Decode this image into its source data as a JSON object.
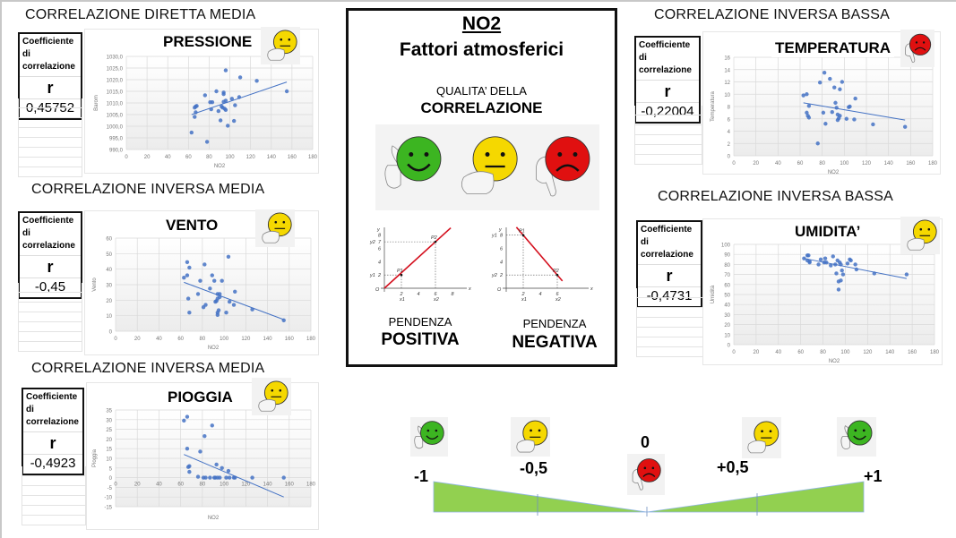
{
  "center": {
    "title": "NO2",
    "subtitle": "Fattori atmosferici",
    "quality_line1": "QUALITA’ DELLA",
    "quality_line2": "CORRELAZIONE",
    "faces": [
      "green-happy-thumbs-up",
      "yellow-neutral-thumb-sideways",
      "red-sad-thumbs-down"
    ],
    "slope_positive": {
      "label1": "PENDENZA",
      "label2": "POSITIVA",
      "points": [
        "P1",
        "P2"
      ],
      "ticks_x": [
        "2",
        "4",
        "6",
        "8"
      ],
      "ticks_y": [
        "2",
        "4",
        "6",
        "7",
        "8"
      ],
      "axis_x": "x",
      "axis_y": "y",
      "origin": "O",
      "x1": "x1",
      "x2": "x2",
      "y1": "y1",
      "y2": "y2"
    },
    "slope_negative": {
      "label1": "PENDENZA",
      "label2": "NEGATIVA",
      "points": [
        "P1",
        "P2"
      ],
      "ticks_x": [
        "2",
        "4",
        "6"
      ],
      "ticks_y": [
        "2",
        "4",
        "6",
        "8"
      ],
      "axis_x": "x",
      "axis_y": "y",
      "origin": "O",
      "x1": "x1",
      "x2": "x2",
      "y1": "y1",
      "y2": "y2"
    }
  },
  "coef_header": "Coefficiente di correlazione",
  "coef_symbol": "r",
  "scale": {
    "labels": [
      "-1",
      "-0,5",
      "0",
      "+0,5",
      "+1"
    ],
    "faces": [
      "green",
      "yellow",
      "red",
      "yellow",
      "green"
    ],
    "fill_color": "#92d050"
  },
  "panels": [
    {
      "section": "CORRELAZIONE DIRETTA MEDIA",
      "name": "PRESSIONE",
      "r": "0,45752",
      "face": "yellow"
    },
    {
      "section": "CORRELAZIONE INVERSA MEDIA",
      "name": "VENTO",
      "r": "-0,45",
      "face": "yellow"
    },
    {
      "section": "CORRELAZIONE INVERSA MEDIA",
      "name": "PIOGGIA",
      "r": "-0,4923",
      "face": "yellow"
    },
    {
      "section": "CORRELAZIONE INVERSA BASSA",
      "name": "TEMPERATURA",
      "r": "-0,22004",
      "face": "red"
    },
    {
      "section": "CORRELAZIONE INVERSA BASSA",
      "name": "UMIDITA’",
      "r": "-0,4731",
      "face": "yellow"
    }
  ],
  "colors": {
    "point": "#4472c4",
    "green": "#3cb521",
    "yellow": "#f5d800",
    "red": "#e01010",
    "slope_line": "#d4101e"
  },
  "chart_data": [
    {
      "type": "scatter",
      "title": "PRESSIONE",
      "xlabel": "NO2",
      "ylabel": "Barom",
      "xlim": [
        0,
        180
      ],
      "ylim": [
        990,
        1030
      ],
      "xticks": [
        "0",
        "20",
        "40",
        "60",
        "80",
        "100",
        "120",
        "140",
        "160",
        "180"
      ],
      "yticks": [
        "990,0",
        "995,0",
        "1000,0",
        "1005,0",
        "1010,0",
        "1015,0",
        "1020,0",
        "1025,0",
        "1030,0"
      ],
      "grid": true,
      "trendline": [
        [
          63,
          1005.0
        ],
        [
          155,
          1019.0
        ]
      ],
      "points": [
        [
          63,
          997.3
        ],
        [
          66,
          1004.0
        ],
        [
          66,
          1008.0
        ],
        [
          67,
          1006.0
        ],
        [
          67,
          1008.5
        ],
        [
          68,
          1008.7
        ],
        [
          76,
          1013.3
        ],
        [
          78,
          993.3
        ],
        [
          81,
          1010.3
        ],
        [
          82,
          1007.3
        ],
        [
          83,
          1010.3
        ],
        [
          87,
          1015.0
        ],
        [
          89,
          1006.5
        ],
        [
          91,
          1002.5
        ],
        [
          92,
          1008.5
        ],
        [
          93,
          1008.0
        ],
        [
          94,
          1014.5
        ],
        [
          94,
          1013.8
        ],
        [
          94,
          1010.5
        ],
        [
          95,
          1007.5
        ],
        [
          96,
          1011.0
        ],
        [
          96,
          1024.0
        ],
        [
          96,
          1007.0
        ],
        [
          98,
          1000.2
        ],
        [
          102,
          1011.8
        ],
        [
          104,
          1002.3
        ],
        [
          105,
          1009.0
        ],
        [
          109,
          1012.5
        ],
        [
          110,
          1021.0
        ],
        [
          126,
          1019.5
        ],
        [
          155,
          1015.0
        ]
      ]
    },
    {
      "type": "scatter",
      "title": "VENTO",
      "xlabel": "NO2",
      "ylabel": "Vento",
      "xlim": [
        0,
        180
      ],
      "ylim": [
        0,
        60
      ],
      "xticks": [
        "0",
        "20",
        "40",
        "60",
        "80",
        "100",
        "120",
        "140",
        "160",
        "180"
      ],
      "yticks": [
        "0",
        "10",
        "20",
        "30",
        "40",
        "50",
        "60"
      ],
      "grid": true,
      "trendline": [
        [
          63,
          31.5
        ],
        [
          155,
          7.5
        ]
      ],
      "points": [
        [
          63,
          34.5
        ],
        [
          66,
          44.5
        ],
        [
          66,
          36
        ],
        [
          67,
          21
        ],
        [
          68,
          41
        ],
        [
          68,
          12
        ],
        [
          76,
          24
        ],
        [
          78,
          32.5
        ],
        [
          81,
          15.5
        ],
        [
          82,
          43
        ],
        [
          83,
          17
        ],
        [
          87,
          27.5
        ],
        [
          89,
          36
        ],
        [
          91,
          32.5
        ],
        [
          92,
          19
        ],
        [
          93,
          19.5
        ],
        [
          94,
          24
        ],
        [
          94,
          21
        ],
        [
          94,
          12
        ],
        [
          94,
          10.5
        ],
        [
          95,
          13.5
        ],
        [
          96,
          24
        ],
        [
          96,
          22
        ],
        [
          98,
          32.5
        ],
        [
          102,
          12
        ],
        [
          104,
          48
        ],
        [
          105,
          19
        ],
        [
          109,
          17
        ],
        [
          110,
          25.5
        ],
        [
          126,
          14
        ],
        [
          155,
          7
        ]
      ]
    },
    {
      "type": "scatter",
      "title": "PIOGGIA",
      "xlabel": "NO2",
      "ylabel": "Pioggia",
      "xlim": [
        0,
        180
      ],
      "ylim": [
        -15,
        35
      ],
      "xticks": [
        "0",
        "20",
        "40",
        "60",
        "80",
        "100",
        "120",
        "140",
        "160",
        "180"
      ],
      "yticks": [
        "-15",
        "-10",
        "-5",
        "0",
        "5",
        "10",
        "15",
        "20",
        "25",
        "30",
        "35"
      ],
      "grid": true,
      "trendline": [
        [
          63,
          12
        ],
        [
          155,
          -10
        ]
      ],
      "points": [
        [
          63,
          29.5
        ],
        [
          66,
          31.5
        ],
        [
          66,
          15
        ],
        [
          67,
          5.5
        ],
        [
          68,
          6
        ],
        [
          68,
          3
        ],
        [
          76,
          0.5
        ],
        [
          78,
          13.5
        ],
        [
          81,
          0
        ],
        [
          82,
          21.5
        ],
        [
          83,
          0
        ],
        [
          87,
          0
        ],
        [
          89,
          27
        ],
        [
          91,
          0
        ],
        [
          92,
          0
        ],
        [
          93,
          6.8
        ],
        [
          94,
          0
        ],
        [
          96,
          0
        ],
        [
          98,
          5
        ],
        [
          102,
          0
        ],
        [
          104,
          3.5
        ],
        [
          105,
          0
        ],
        [
          109,
          0
        ],
        [
          110,
          0
        ],
        [
          126,
          0
        ],
        [
          155,
          0
        ]
      ]
    },
    {
      "type": "scatter",
      "title": "TEMPERATURA",
      "xlabel": "NO2",
      "ylabel": "Temperatura",
      "xlim": [
        0,
        180
      ],
      "ylim": [
        0,
        16
      ],
      "xticks": [
        "0",
        "20",
        "40",
        "60",
        "80",
        "100",
        "120",
        "140",
        "160",
        "180"
      ],
      "yticks": [
        "0",
        "2",
        "4",
        "6",
        "8",
        "10",
        "12",
        "14",
        "16"
      ],
      "grid": true,
      "trendline": [
        [
          63,
          8.6
        ],
        [
          155,
          5.8
        ]
      ],
      "points": [
        [
          63,
          9.8
        ],
        [
          66,
          10
        ],
        [
          66,
          7
        ],
        [
          67,
          6.5
        ],
        [
          68,
          8.1
        ],
        [
          68,
          6.2
        ],
        [
          76,
          2
        ],
        [
          78,
          11.9
        ],
        [
          81,
          7
        ],
        [
          82,
          13.5
        ],
        [
          83,
          5.2
        ],
        [
          87,
          12.5
        ],
        [
          89,
          7.1
        ],
        [
          91,
          11.1
        ],
        [
          92,
          8.6
        ],
        [
          93,
          7.8
        ],
        [
          94,
          6.7
        ],
        [
          94,
          5.8
        ],
        [
          95,
          6.1
        ],
        [
          96,
          10.8
        ],
        [
          96,
          6.5
        ],
        [
          98,
          12
        ],
        [
          102,
          6
        ],
        [
          104,
          7.9
        ],
        [
          105,
          8
        ],
        [
          109,
          5.9
        ],
        [
          110,
          9.3
        ],
        [
          126,
          5.1
        ],
        [
          155,
          4.7
        ]
      ]
    },
    {
      "type": "scatter",
      "title": "UMIDITA’",
      "xlabel": "NO2",
      "ylabel": "Umidità",
      "xlim": [
        0,
        180
      ],
      "ylim": [
        0,
        100
      ],
      "xticks": [
        "0",
        "20",
        "40",
        "60",
        "80",
        "100",
        "120",
        "140",
        "160",
        "180"
      ],
      "yticks": [
        "0",
        "10",
        "20",
        "30",
        "40",
        "50",
        "60",
        "70",
        "80",
        "90",
        "100"
      ],
      "grid": true,
      "trendline": [
        [
          63,
          86
        ],
        [
          155,
          66
        ]
      ],
      "points": [
        [
          63,
          86
        ],
        [
          66,
          84
        ],
        [
          66,
          89
        ],
        [
          67,
          89
        ],
        [
          68,
          83
        ],
        [
          68,
          82
        ],
        [
          76,
          80
        ],
        [
          78,
          85
        ],
        [
          81,
          82
        ],
        [
          82,
          86
        ],
        [
          83,
          82
        ],
        [
          87,
          79
        ],
        [
          89,
          88
        ],
        [
          91,
          80
        ],
        [
          92,
          71
        ],
        [
          93,
          84
        ],
        [
          94,
          63
        ],
        [
          94,
          55
        ],
        [
          95,
          82
        ],
        [
          96,
          64
        ],
        [
          96,
          80
        ],
        [
          97,
          74
        ],
        [
          98,
          70
        ],
        [
          102,
          81
        ],
        [
          104,
          85
        ],
        [
          105,
          84
        ],
        [
          109,
          80
        ],
        [
          110,
          75
        ],
        [
          126,
          71
        ],
        [
          155,
          70
        ]
      ]
    }
  ]
}
